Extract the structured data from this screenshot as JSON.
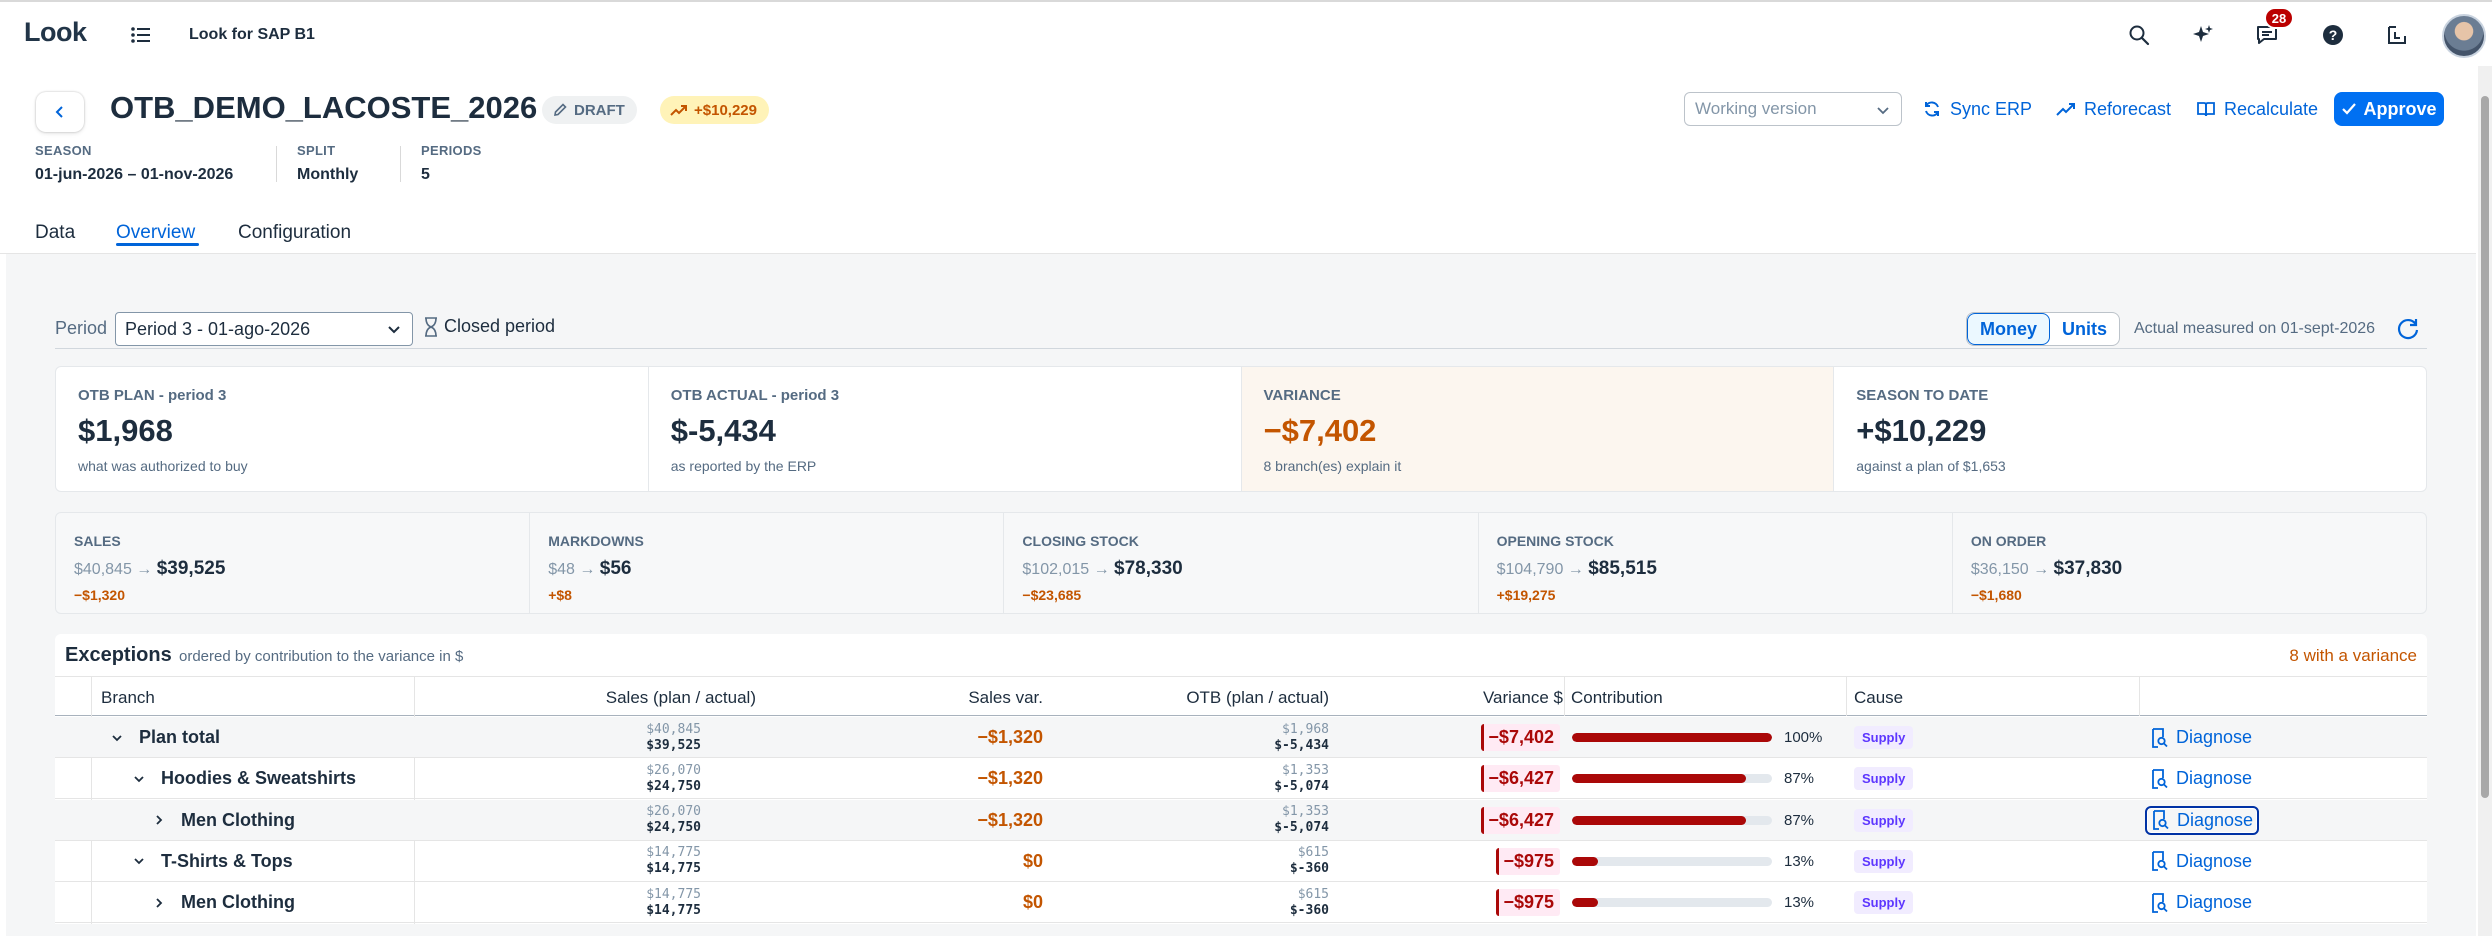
{
  "shell": {
    "logo": "Look",
    "app_title": "Look for SAP B1",
    "notification_count": "28"
  },
  "header": {
    "title": "OTB_DEMO_LACOSTE_2026",
    "status_tag": "DRAFT",
    "trend_tag": "+$10,229",
    "attributes": [
      {
        "label": "SEASON",
        "value": "01-jun-2026 – 01-nov-2026"
      },
      {
        "label": "SPLIT",
        "value": "Monthly"
      },
      {
        "label": "PERIODS",
        "value": "5"
      }
    ],
    "version_placeholder": "Working version",
    "actions": {
      "sync": "Sync ERP",
      "reforecast": "Reforecast",
      "recalculate": "Recalculate",
      "approve": "Approve"
    }
  },
  "tabs": [
    {
      "label": "Data",
      "active": false
    },
    {
      "label": "Overview",
      "active": true
    },
    {
      "label": "Configuration",
      "active": false
    }
  ],
  "filters": {
    "period_label": "Period",
    "period_value": "Period 3 - 01-ago-2026",
    "closed_label": "Closed period",
    "mode_money": "Money",
    "mode_units": "Units",
    "mode_selected": "Money",
    "measured_note": "Actual measured on 01-sept-2026"
  },
  "kpis": [
    {
      "label": "OTB PLAN - period 3",
      "value": "$1,968",
      "sub": "what was authorized to buy"
    },
    {
      "label": "OTB ACTUAL - period 3",
      "value": "$-5,434",
      "sub": "as reported by the ERP"
    },
    {
      "label": "VARIANCE",
      "value": "−$7,402",
      "sub": "8 branch(es) explain it"
    },
    {
      "label": "SEASON TO DATE",
      "value": "+$10,229",
      "sub": "against a plan of $1,653"
    }
  ],
  "sub_kpis": [
    {
      "label": "SALES",
      "from": "$40,845",
      "to": "$39,525",
      "delta": "−$1,320"
    },
    {
      "label": "MARKDOWNS",
      "from": "$48",
      "to": "$56",
      "delta": "+$8"
    },
    {
      "label": "CLOSING STOCK",
      "from": "$102,015",
      "to": "$78,330",
      "delta": "−$23,685"
    },
    {
      "label": "OPENING STOCK",
      "from": "$104,790",
      "to": "$85,515",
      "delta": "+$19,275"
    },
    {
      "label": "ON ORDER",
      "from": "$36,150",
      "to": "$37,830",
      "delta": "−$1,680"
    }
  ],
  "exceptions": {
    "title": "Exceptions",
    "note": "ordered by contribution to the variance in $",
    "count_label": "8 with a variance",
    "columns": [
      "Branch",
      "Sales (plan / actual)",
      "Sales var.",
      "OTB (plan / actual)",
      "Variance $",
      "Contribution",
      "Cause"
    ],
    "rows": [
      {
        "branch": "Plan total",
        "sales_plan": "$40,845",
        "sales_actual": "$39,525",
        "sales_var": "−$1,320",
        "otb_plan": "$1,968",
        "otb_actual": "$-5,434",
        "variance": "−$7,402",
        "contribution": 100,
        "contribution_label": "100%",
        "cause": "Supply",
        "action": "Diagnose"
      },
      {
        "branch": "Hoodies & Sweatshirts",
        "sales_plan": "$26,070",
        "sales_actual": "$24,750",
        "sales_var": "−$1,320",
        "otb_plan": "$1,353",
        "otb_actual": "$-5,074",
        "variance": "−$6,427",
        "contribution": 87,
        "contribution_label": "87%",
        "cause": "Supply",
        "action": "Diagnose"
      },
      {
        "branch": "Men Clothing",
        "sales_plan": "$26,070",
        "sales_actual": "$24,750",
        "sales_var": "−$1,320",
        "otb_plan": "$1,353",
        "otb_actual": "$-5,074",
        "variance": "−$6,427",
        "contribution": 87,
        "contribution_label": "87%",
        "cause": "Supply",
        "action": "Diagnose"
      },
      {
        "branch": "T-Shirts & Tops",
        "sales_plan": "$14,775",
        "sales_actual": "$14,775",
        "sales_var": "$0",
        "otb_plan": "$615",
        "otb_actual": "$-360",
        "variance": "−$975",
        "contribution": 13,
        "contribution_label": "13%",
        "cause": "Supply",
        "action": "Diagnose"
      },
      {
        "branch": "Men Clothing",
        "sales_plan": "$14,775",
        "sales_actual": "$14,775",
        "sales_var": "$0",
        "otb_plan": "$615",
        "otb_actual": "$-360",
        "variance": "−$975",
        "contribution": 13,
        "contribution_label": "13%",
        "cause": "Supply",
        "action": "Diagnose"
      }
    ]
  },
  "colors": {
    "accent": "#0064d9",
    "negative": "#c35500",
    "critical": "#aa0808"
  }
}
